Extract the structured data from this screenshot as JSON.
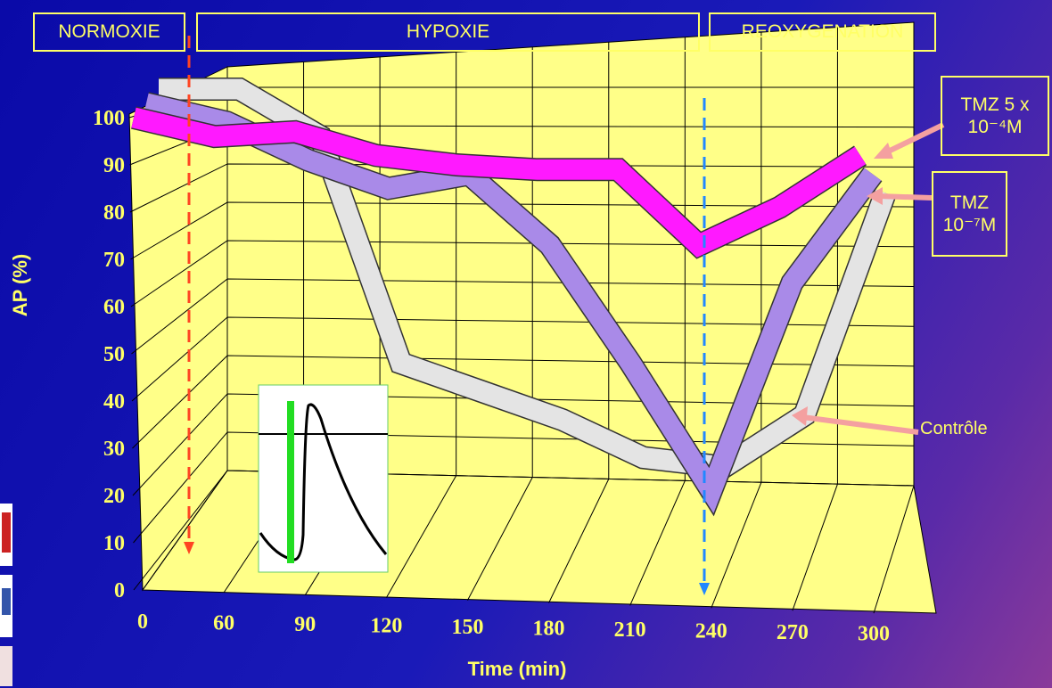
{
  "chart_data": {
    "type": "line",
    "y_label": "AP (%)",
    "x_label": "Time (min)",
    "categories": [
      "0",
      "60",
      "90",
      "120",
      "150",
      "180",
      "210",
      "240",
      "270",
      "300"
    ],
    "phases": [
      "NORMOXIE",
      "HYPOXIE",
      "REOXYGENATION"
    ],
    "ylim": [
      0,
      100
    ],
    "yticks": [
      0,
      10,
      20,
      30,
      40,
      50,
      60,
      70,
      80,
      90,
      100
    ],
    "grid": true,
    "series": [
      {
        "name": "Contrôle",
        "color": "#e4e4e4",
        "values": [
          100,
          100,
          90,
          42,
          36,
          30,
          22,
          20,
          31,
          78
        ]
      },
      {
        "name": "TMZ 10⁻⁷M",
        "color": "#a98ae8",
        "values": [
          100,
          96,
          88,
          82,
          85,
          70,
          45,
          18,
          62,
          85
        ]
      },
      {
        "name": "TMZ 5 x 10⁻⁴M",
        "color": "#ff19ff",
        "values": [
          100,
          96,
          97,
          92,
          90,
          89,
          89,
          73,
          81,
          92
        ]
      }
    ]
  }
}
